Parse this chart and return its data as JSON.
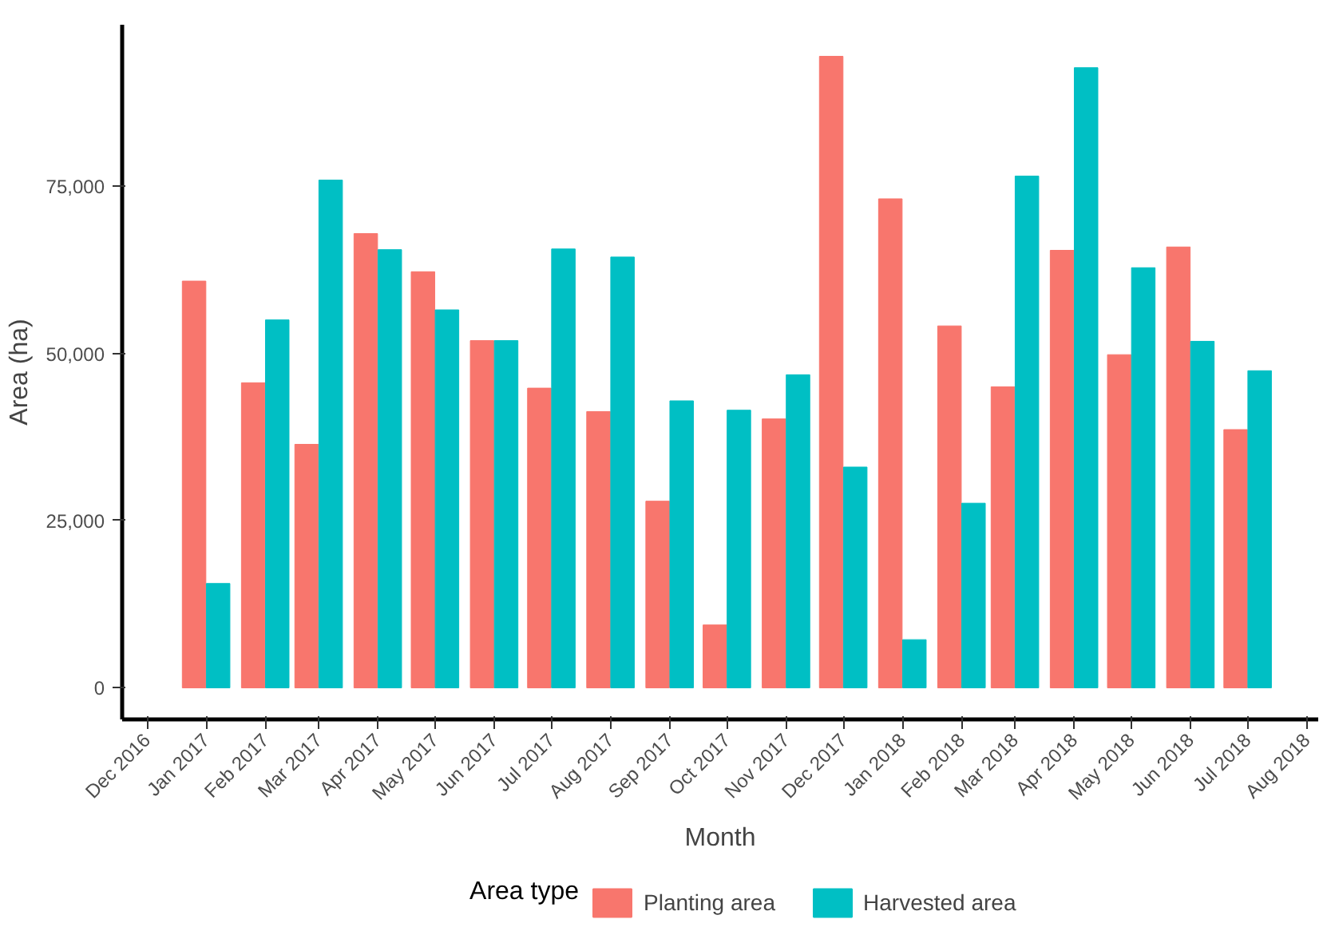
{
  "chart_data": {
    "type": "bar",
    "xlabel": "Month",
    "ylabel": "Area (ha)",
    "legend_title": "Area type",
    "legend": "bottom",
    "grid": false,
    "x": [
      "2017-01",
      "2017-02",
      "2017-03",
      "2017-04",
      "2017-05",
      "2017-06",
      "2017-07",
      "2017-08",
      "2017-09",
      "2017-10",
      "2017-11",
      "2017-12",
      "2018-01",
      "2018-02",
      "2018-03",
      "2018-04",
      "2018-05",
      "2018-06",
      "2018-07"
    ],
    "series": [
      {
        "name": "Planting area",
        "color": "#f8766d",
        "values": [
          60800,
          45600,
          36400,
          67900,
          62200,
          51900,
          44800,
          41300,
          27900,
          9400,
          40200,
          94400,
          73100,
          54100,
          45000,
          65400,
          49800,
          65900,
          38600
        ]
      },
      {
        "name": "Harvested area",
        "color": "#00bfc4",
        "values": [
          15600,
          55000,
          75900,
          65500,
          56500,
          51900,
          65600,
          64400,
          42900,
          41500,
          46800,
          33000,
          7200,
          27600,
          76500,
          92700,
          62800,
          51800,
          47400
        ]
      }
    ],
    "ylim": [
      -4720,
      99120
    ],
    "yticks": [
      0,
      {
        "value": 25000,
        "label": "25,000"
      },
      {
        "value": 50000,
        "label": "50,000"
      },
      {
        "value": 75000,
        "label": "75,000"
      }
    ],
    "xlim": [
      "2016-11-18",
      "2018-08-07"
    ],
    "xticks": [
      {
        "value": "2016-12",
        "label": "Dec 2016"
      },
      {
        "value": "2017-01",
        "label": "Jan 2017"
      },
      {
        "value": "2017-02",
        "label": "Feb 2017"
      },
      {
        "value": "2017-03",
        "label": "Mar 2017"
      },
      {
        "value": "2017-04",
        "label": "Apr 2017"
      },
      {
        "value": "2017-05",
        "label": "May 2017"
      },
      {
        "value": "2017-06",
        "label": "Jun 2017"
      },
      {
        "value": "2017-07",
        "label": "Jul 2017"
      },
      {
        "value": "2017-08",
        "label": "Aug 2017"
      },
      {
        "value": "2017-09",
        "label": "Sep 2017"
      },
      {
        "value": "2017-10",
        "label": "Oct 2017"
      },
      {
        "value": "2017-11",
        "label": "Nov 2017"
      },
      {
        "value": "2017-12",
        "label": "Dec 2017"
      },
      {
        "value": "2018-01",
        "label": "Jan 2018"
      },
      {
        "value": "2018-02",
        "label": "Feb 2018"
      },
      {
        "value": "2018-03",
        "label": "Mar 2018"
      },
      {
        "value": "2018-04",
        "label": "Apr 2018"
      },
      {
        "value": "2018-05",
        "label": "May 2018"
      },
      {
        "value": "2018-06",
        "label": "Jun 2018"
      },
      {
        "value": "2018-07",
        "label": "Jul 2018"
      },
      {
        "value": "2018-08",
        "label": "Aug 2018"
      }
    ]
  }
}
